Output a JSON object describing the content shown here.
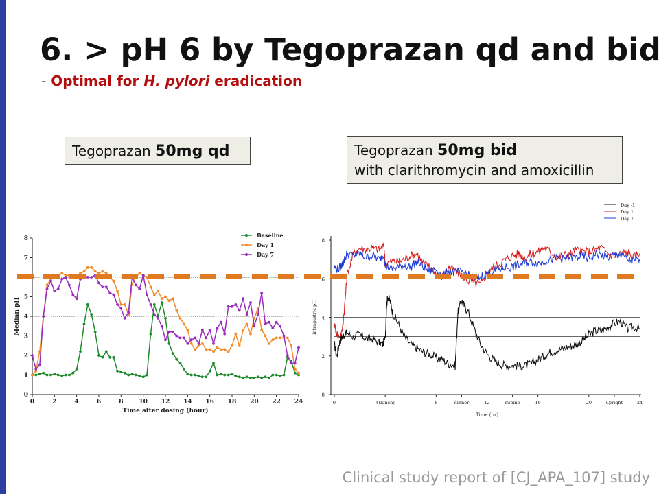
{
  "slide": {
    "title": "6. > pH 6 by Tegoprazan qd and bid",
    "subtitle_dash": "-",
    "subtitle_pre": "Optimal for",
    "subtitle_em": "H. pylori",
    "subtitle_post": "eradication",
    "box1_pre": "Tegoprazan",
    "box1_bold": "50mg qd",
    "box2_pre": "Tegoprazan",
    "box2_bold": "50mg bid",
    "box2_line2": "with clarithromycin and amoxicillin",
    "footer": "Clinical study report of [CJ_APA_107] study",
    "colors": {
      "accent_bar": "#2a3f9e",
      "subtitle": "#b40d0d",
      "threshold_dash": "#e07a20"
    }
  },
  "chart_data": [
    {
      "type": "line",
      "xlabel": "Time after dosing (hour)",
      "ylabel": "Median pH",
      "xlim": [
        0,
        24
      ],
      "ylim": [
        0,
        8
      ],
      "xticks": [
        "0",
        "2",
        "4",
        "6",
        "8",
        "10",
        "12",
        "14",
        "16",
        "18",
        "20",
        "22",
        "24"
      ],
      "yticks": [
        "0",
        "1",
        "2",
        "3",
        "4",
        "5",
        "6",
        "7",
        "8"
      ],
      "reference_line": 4,
      "legend_placement": "top-right",
      "series": [
        {
          "name": "Baseline",
          "color": "#1e8a2a",
          "x": [
            0,
            0.33,
            0.67,
            1,
            1.33,
            1.67,
            2,
            2.33,
            2.67,
            3,
            3.33,
            3.67,
            4,
            4.33,
            4.67,
            5,
            5.33,
            5.67,
            6,
            6.33,
            6.67,
            7,
            7.33,
            7.67,
            8,
            8.33,
            8.67,
            9,
            9.33,
            9.67,
            10,
            10.33,
            10.67,
            11,
            11.33,
            11.67,
            12,
            12.33,
            12.67,
            13,
            13.33,
            13.67,
            14,
            14.33,
            14.67,
            15,
            15.33,
            15.67,
            16,
            16.33,
            16.67,
            17,
            17.33,
            17.67,
            18,
            18.33,
            18.67,
            19,
            19.33,
            19.67,
            20,
            20.33,
            20.67,
            21,
            21.33,
            21.67,
            22,
            22.33,
            22.67,
            23,
            23.33,
            23.67,
            24
          ],
          "values": [
            1.0,
            1.0,
            1.05,
            1.1,
            1.0,
            1.0,
            1.05,
            1.0,
            0.95,
            1.0,
            1.0,
            1.1,
            1.3,
            2.2,
            3.6,
            4.6,
            4.1,
            3.2,
            2.0,
            1.9,
            2.2,
            1.9,
            1.9,
            1.2,
            1.15,
            1.1,
            1.0,
            1.05,
            1.0,
            0.95,
            0.9,
            1.0,
            3.1,
            4.6,
            4.0,
            4.7,
            3.9,
            2.6,
            2.1,
            1.8,
            1.6,
            1.3,
            1.05,
            1.0,
            1.0,
            0.95,
            0.9,
            0.9,
            1.2,
            1.6,
            1.0,
            1.05,
            1.0,
            1.0,
            1.05,
            0.95,
            0.9,
            0.85,
            0.9,
            0.85,
            0.85,
            0.9,
            0.85,
            0.9,
            0.85,
            1.0,
            1.0,
            0.95,
            1.0,
            1.9,
            1.7,
            1.1,
            1.0
          ]
        },
        {
          "name": "Day 1",
          "color": "#f28c28",
          "x": [
            0,
            0.33,
            0.67,
            1,
            1.33,
            1.67,
            2,
            2.33,
            2.67,
            3,
            3.33,
            3.67,
            4,
            4.33,
            4.67,
            5,
            5.33,
            5.67,
            6,
            6.33,
            6.67,
            7,
            7.33,
            7.67,
            8,
            8.33,
            8.67,
            9,
            9.33,
            9.67,
            10,
            10.33,
            10.67,
            11,
            11.33,
            11.67,
            12,
            12.33,
            12.67,
            13,
            13.33,
            13.67,
            14,
            14.33,
            14.67,
            15,
            15.33,
            15.67,
            16,
            16.33,
            16.67,
            17,
            17.33,
            17.67,
            18,
            18.33,
            18.67,
            19,
            19.33,
            19.67,
            20,
            20.33,
            20.67,
            21,
            21.33,
            21.67,
            22,
            22.33,
            22.67,
            23,
            23.33,
            23.67,
            24
          ],
          "values": [
            1.0,
            1.2,
            2.2,
            4.0,
            5.6,
            5.9,
            6.1,
            6.1,
            6.2,
            6.1,
            6.1,
            6.0,
            6.1,
            6.2,
            6.3,
            6.5,
            6.5,
            6.3,
            6.2,
            6.3,
            6.2,
            6.0,
            5.8,
            5.3,
            4.6,
            4.6,
            4.1,
            5.6,
            6.0,
            6.2,
            6.1,
            6.0,
            5.5,
            5.1,
            5.3,
            4.9,
            5.0,
            4.8,
            4.9,
            4.3,
            3.9,
            3.6,
            3.3,
            2.6,
            2.3,
            2.5,
            2.6,
            2.3,
            2.3,
            2.2,
            2.4,
            2.3,
            2.3,
            2.2,
            2.5,
            3.1,
            2.5,
            3.3,
            3.6,
            3.1,
            3.9,
            4.4,
            3.3,
            3.0,
            2.6,
            2.8,
            2.9,
            2.9,
            2.9,
            2.9,
            2.5,
            1.3,
            1.1
          ]
        },
        {
          "name": "Day 7",
          "color": "#9b2bbf",
          "x": [
            0,
            0.33,
            0.67,
            1,
            1.33,
            1.67,
            2,
            2.33,
            2.67,
            3,
            3.33,
            3.67,
            4,
            4.33,
            4.67,
            5,
            5.33,
            5.67,
            6,
            6.33,
            6.67,
            7,
            7.33,
            7.67,
            8,
            8.33,
            8.67,
            9,
            9.33,
            9.67,
            10,
            10.33,
            10.67,
            11,
            11.33,
            11.67,
            12,
            12.33,
            12.67,
            13,
            13.33,
            13.67,
            14,
            14.33,
            14.67,
            15,
            15.33,
            15.67,
            16,
            16.33,
            16.67,
            17,
            17.33,
            17.67,
            18,
            18.33,
            18.67,
            19,
            19.33,
            19.67,
            20,
            20.33,
            20.67,
            21,
            21.33,
            21.67,
            22,
            22.33,
            22.67,
            23,
            23.33,
            23.67,
            24
          ],
          "values": [
            2.0,
            1.3,
            1.5,
            4.0,
            5.4,
            5.8,
            5.3,
            5.4,
            5.9,
            6.0,
            5.6,
            5.1,
            4.9,
            5.9,
            6.1,
            6.0,
            6.0,
            6.1,
            5.7,
            5.5,
            5.5,
            5.2,
            5.1,
            4.6,
            4.4,
            3.9,
            4.2,
            6.0,
            5.6,
            5.4,
            6.1,
            5.1,
            4.6,
            4.1,
            3.9,
            3.5,
            2.8,
            3.2,
            3.2,
            3.0,
            2.9,
            2.9,
            2.6,
            2.8,
            2.9,
            2.6,
            3.3,
            2.9,
            3.3,
            2.6,
            3.4,
            3.7,
            3.1,
            4.5,
            4.5,
            4.6,
            4.3,
            4.9,
            4.1,
            4.7,
            3.5,
            4.1,
            5.2,
            3.6,
            3.7,
            3.4,
            3.7,
            3.5,
            3.0,
            2.0,
            1.6,
            1.6,
            2.4
          ]
        }
      ]
    },
    {
      "type": "line",
      "xlabel": "Time (hr)",
      "ylabel": "intragastric pH",
      "xlim": [
        0,
        24
      ],
      "ylim": [
        0,
        8
      ],
      "xticks": [
        "0",
        "4(lunch)",
        "8",
        "dinner",
        "12",
        "supine",
        "16",
        "20",
        "upright",
        "24"
      ],
      "yticks": [
        "0",
        "2",
        "4",
        "6",
        "8"
      ],
      "reference_lines": [
        4,
        3
      ],
      "legend_placement": "top-right",
      "series": [
        {
          "name": "Day -1",
          "color": "#111111",
          "x": [
            0,
            0.2,
            0.4,
            0.6,
            0.8,
            1,
            1.5,
            2,
            2.5,
            3,
            3.5,
            3.8,
            4,
            4.1,
            4.2,
            4.4,
            4.6,
            5,
            5.5,
            6,
            6.5,
            7,
            7.5,
            8,
            8.5,
            9,
            9.5,
            9.7,
            10,
            10.2,
            10.5,
            11,
            11.5,
            12,
            12.5,
            13,
            13.5,
            14,
            14.5,
            15,
            15.5,
            16,
            16.5,
            17,
            17.5,
            18,
            18.5,
            19,
            19.5,
            20,
            20.5,
            21,
            21.5,
            22,
            22.5,
            23,
            23.5,
            24
          ],
          "values": [
            2.6,
            2.0,
            2.7,
            3.0,
            3.1,
            3.2,
            3.0,
            3.1,
            2.9,
            2.9,
            2.7,
            2.6,
            2.9,
            4.6,
            5.1,
            4.8,
            4.2,
            3.7,
            3.0,
            2.6,
            2.4,
            2.2,
            2.1,
            1.9,
            1.8,
            1.6,
            1.5,
            4.2,
            4.9,
            4.6,
            4.3,
            3.4,
            2.6,
            2.1,
            1.8,
            1.6,
            1.5,
            1.5,
            1.5,
            1.5,
            1.6,
            1.8,
            2.0,
            2.2,
            2.3,
            2.4,
            2.5,
            2.6,
            2.8,
            3.1,
            3.3,
            3.3,
            3.5,
            3.7,
            3.8,
            3.4,
            3.5,
            3.4
          ]
        },
        {
          "name": "Day 1",
          "color": "#d62020",
          "x": [
            0,
            0.3,
            0.6,
            0.8,
            1,
            1.5,
            2,
            2.5,
            3,
            3.5,
            3.9,
            4,
            4.5,
            5,
            5.5,
            6,
            6.5,
            7,
            7.5,
            8,
            8.5,
            9,
            9.5,
            10,
            10.5,
            11,
            11.5,
            12,
            12.5,
            13,
            13.5,
            14,
            14.5,
            15,
            15.5,
            16,
            16.5,
            17,
            17.5,
            18,
            18.5,
            19,
            19.5,
            20,
            20.5,
            21,
            21.5,
            22,
            22.5,
            23,
            23.5,
            24
          ],
          "values": [
            3.6,
            3.0,
            3.2,
            4.5,
            6.2,
            7.3,
            7.6,
            7.5,
            7.6,
            7.5,
            7.7,
            6.8,
            6.9,
            6.9,
            7.0,
            7.2,
            7.3,
            6.8,
            6.6,
            6.3,
            6.1,
            6.6,
            6.4,
            6.2,
            5.9,
            5.8,
            5.7,
            6.3,
            6.6,
            6.8,
            7.0,
            7.2,
            7.3,
            7.1,
            7.3,
            7.4,
            7.6,
            7.4,
            7.1,
            7.2,
            7.3,
            7.5,
            7.4,
            7.4,
            7.5,
            7.6,
            7.3,
            7.2,
            7.3,
            7.4,
            7.1,
            7.3
          ]
        },
        {
          "name": "Day 7",
          "color": "#1f3cd6",
          "x": [
            0,
            0.3,
            0.6,
            0.8,
            1,
            1.5,
            2,
            2.5,
            3,
            3.5,
            3.9,
            4,
            4.5,
            5,
            5.5,
            6,
            6.5,
            7,
            7.5,
            8,
            8.5,
            9,
            9.5,
            10,
            10.5,
            11,
            11.5,
            12,
            12.5,
            13,
            13.5,
            14,
            14.5,
            15,
            15.5,
            16,
            16.5,
            17,
            17.5,
            18,
            18.5,
            19,
            19.5,
            20,
            20.5,
            21,
            21.5,
            22,
            22.5,
            23,
            23.5,
            24
          ],
          "values": [
            6.6,
            6.5,
            6.7,
            7.0,
            7.3,
            7.2,
            7.3,
            7.1,
            7.2,
            7.0,
            7.2,
            6.7,
            6.5,
            6.6,
            6.7,
            6.6,
            6.9,
            6.6,
            6.4,
            6.5,
            6.1,
            6.4,
            6.3,
            6.4,
            6.2,
            6.0,
            6.1,
            6.3,
            6.4,
            6.5,
            6.6,
            6.6,
            6.7,
            6.8,
            6.9,
            6.8,
            6.9,
            7.0,
            7.1,
            7.0,
            7.1,
            7.1,
            7.2,
            7.0,
            7.3,
            7.2,
            7.1,
            7.2,
            7.3,
            7.0,
            6.9,
            7.0
          ]
        }
      ]
    }
  ]
}
